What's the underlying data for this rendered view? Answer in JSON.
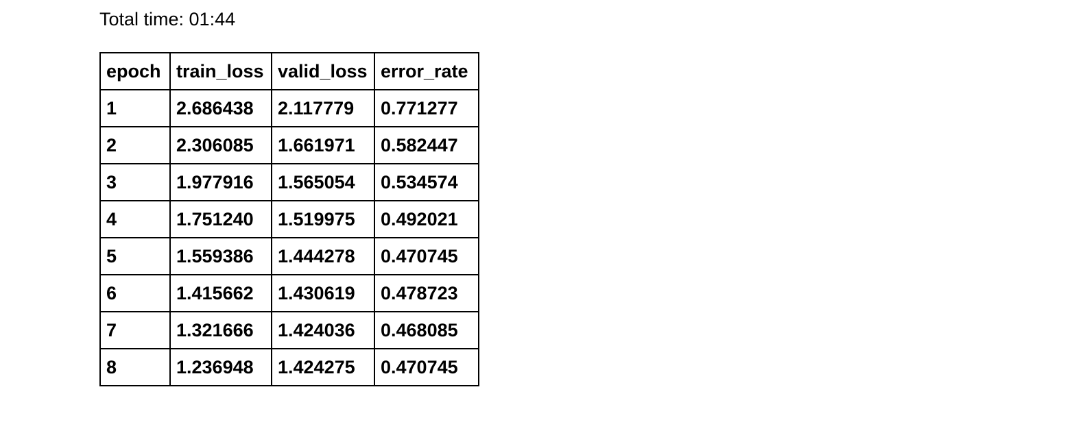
{
  "summary": {
    "total_time": "Total time: 01:44"
  },
  "table": {
    "columns": [
      "epoch",
      "train_loss",
      "valid_loss",
      "error_rate"
    ],
    "rows": [
      [
        "1",
        "2.686438",
        "2.117779",
        "0.771277"
      ],
      [
        "2",
        "2.306085",
        "1.661971",
        "0.582447"
      ],
      [
        "3",
        "1.977916",
        "1.565054",
        "0.534574"
      ],
      [
        "4",
        "1.751240",
        "1.519975",
        "0.492021"
      ],
      [
        "5",
        "1.559386",
        "1.444278",
        "0.470745"
      ],
      [
        "6",
        "1.415662",
        "1.430619",
        "0.478723"
      ],
      [
        "7",
        "1.321666",
        "1.424036",
        "0.468085"
      ],
      [
        "8",
        "1.236948",
        "1.424275",
        "0.470745"
      ]
    ]
  }
}
